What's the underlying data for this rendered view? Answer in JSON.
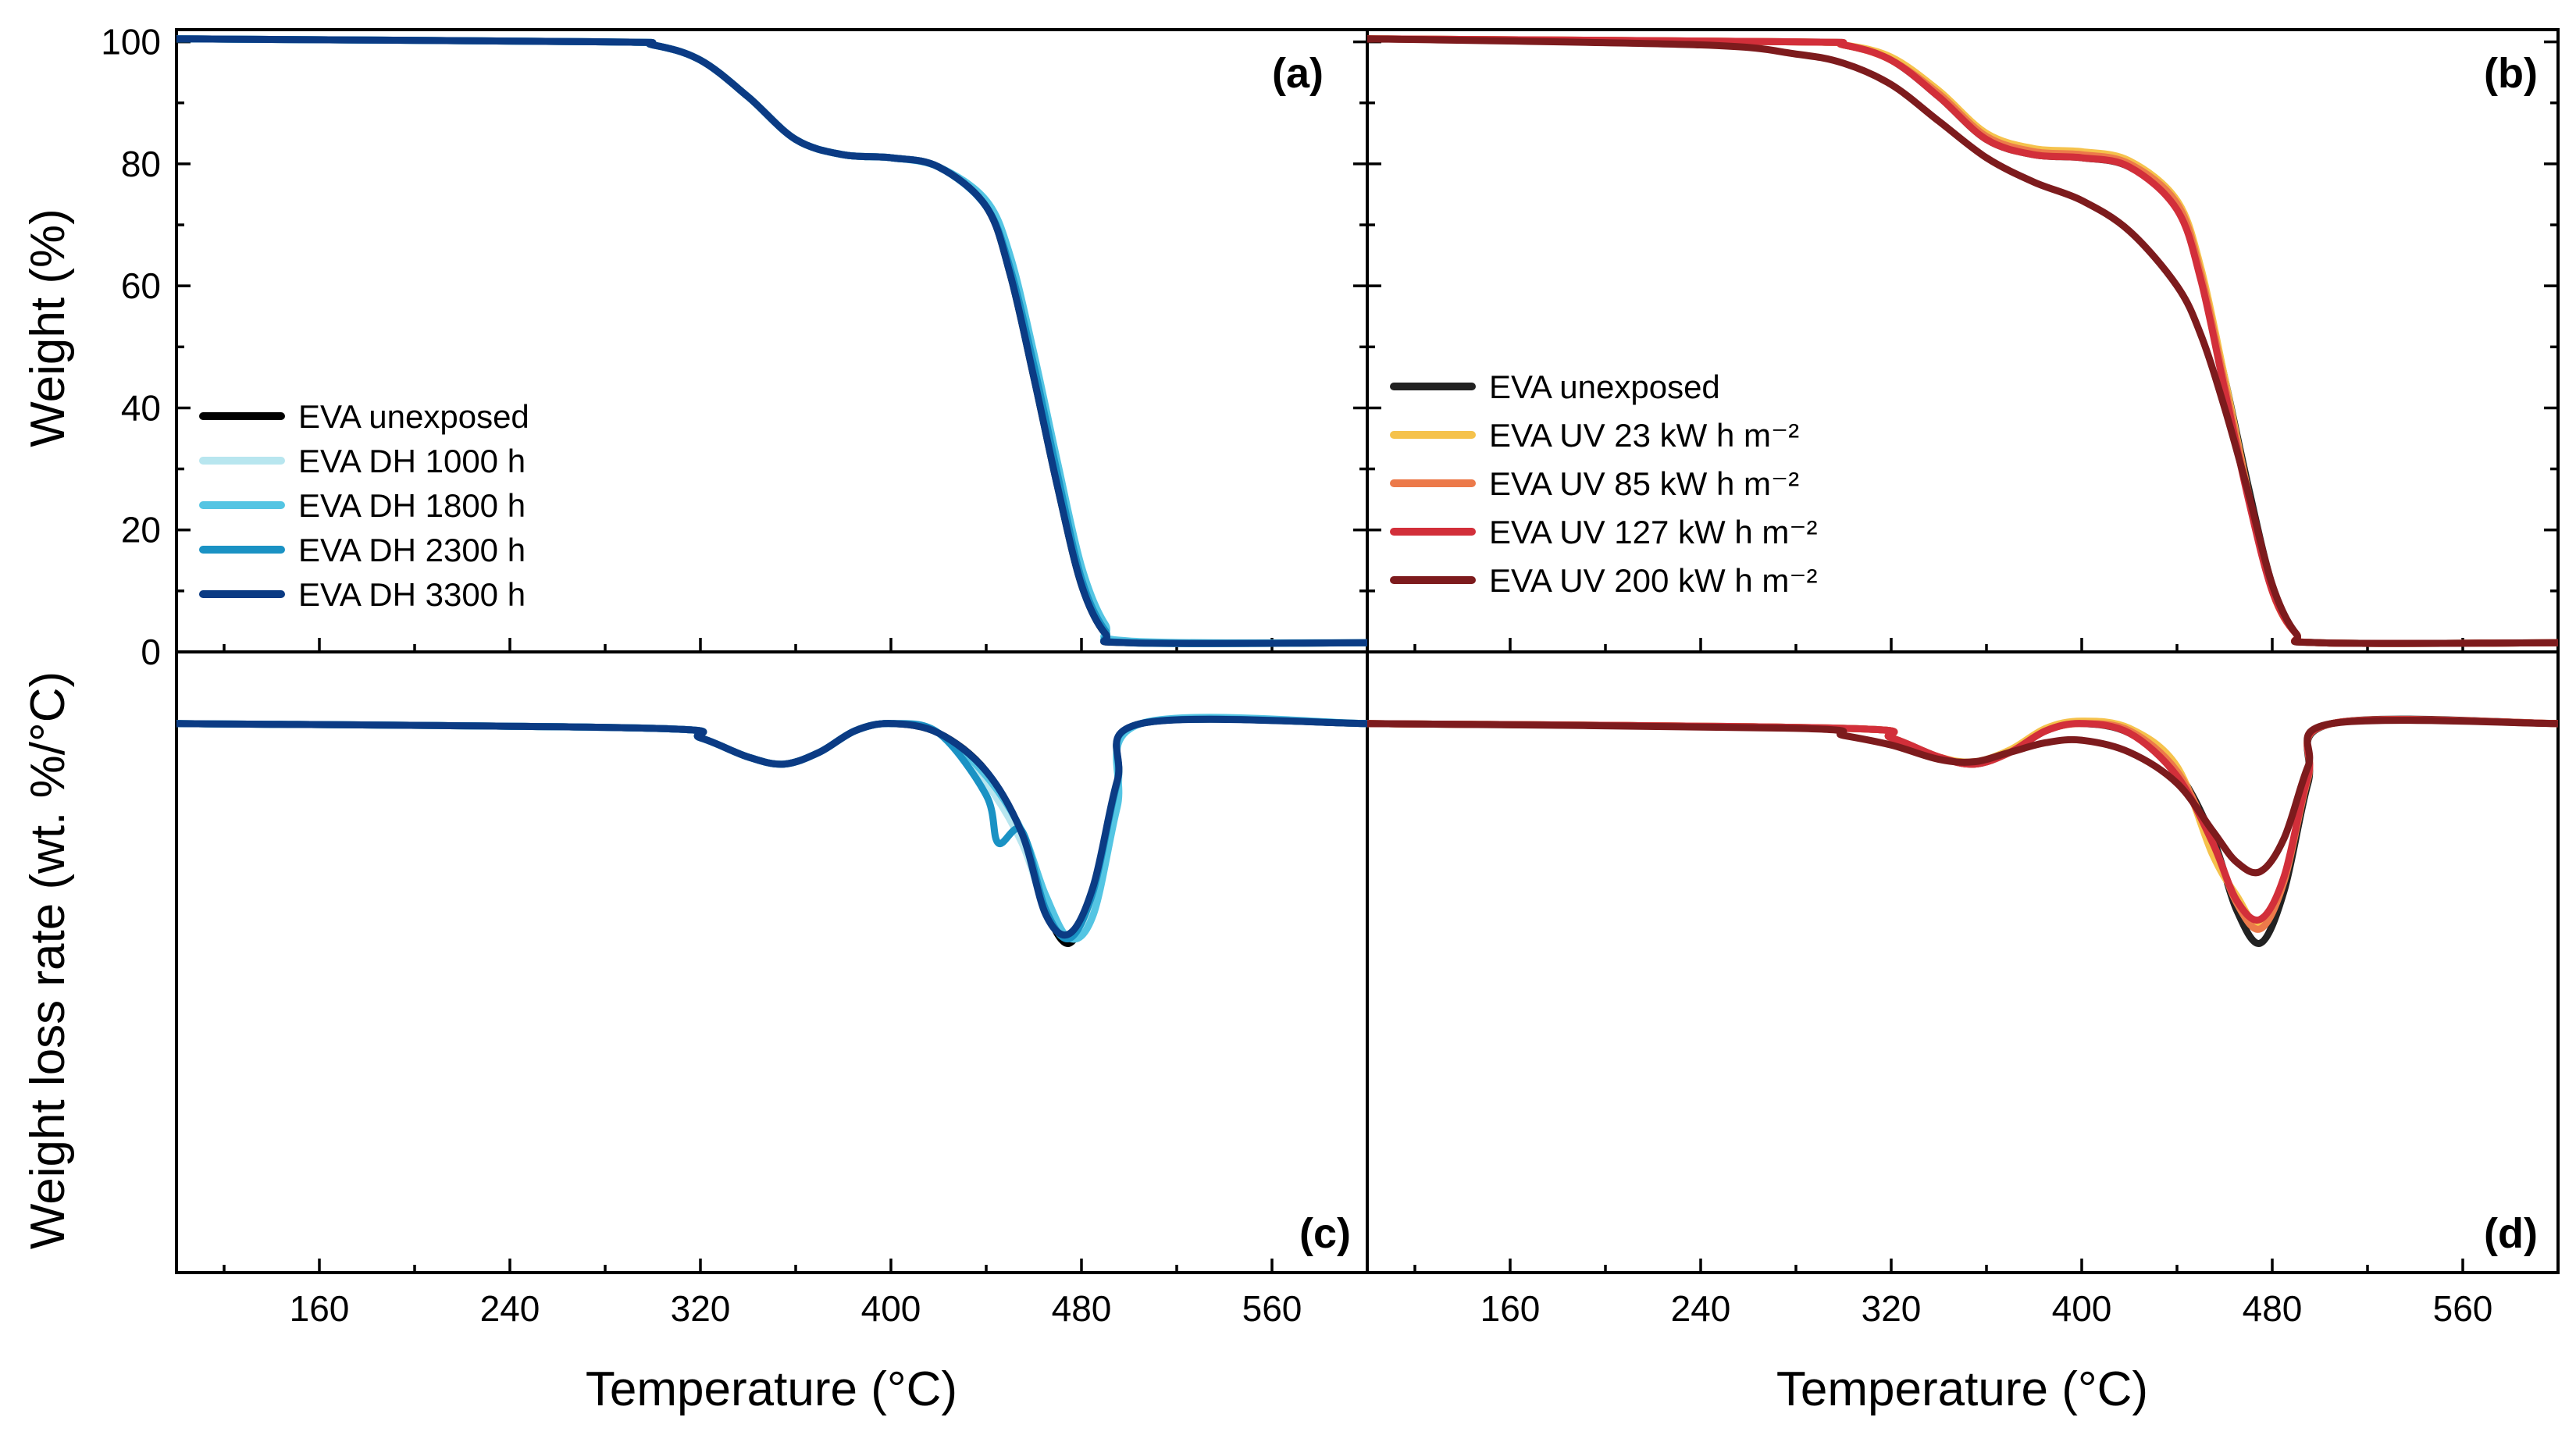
{
  "chart_data": [
    {
      "panel": "(a)",
      "type": "line",
      "xlabel": "Temperature (°C)",
      "ylabel": "Weight (%)",
      "xlim": [
        100,
        600
      ],
      "ylim": [
        0,
        102
      ],
      "x_ticks": [
        160,
        240,
        320,
        400,
        480,
        560
      ],
      "y_ticks": [
        0,
        20,
        40,
        60,
        80,
        100
      ],
      "legend_position": "center-left",
      "series": [
        {
          "name": "EVA unexposed",
          "color": "#000000",
          "x": [
            100,
            280,
            300,
            320,
            340,
            360,
            380,
            400,
            420,
            440,
            450,
            460,
            470,
            480,
            490,
            500,
            600
          ],
          "y": [
            100.5,
            100,
            99.5,
            97,
            91,
            84,
            81.5,
            81,
            79.5,
            73,
            62,
            45,
            27,
            11,
            3,
            1.5,
            1.5
          ]
        },
        {
          "name": "EVA DH 1000 h",
          "color": "#b8e6ef",
          "x": [
            100,
            280,
            300,
            320,
            340,
            360,
            380,
            400,
            420,
            440,
            450,
            460,
            470,
            480,
            490,
            500,
            600
          ],
          "y": [
            100.5,
            100,
            99.5,
            97,
            91,
            84,
            81.5,
            81,
            79.5,
            73,
            63,
            46,
            28,
            12,
            3.5,
            1.5,
            1.5
          ]
        },
        {
          "name": "EVA DH 1800 h",
          "color": "#54c5e3",
          "x": [
            100,
            280,
            300,
            320,
            340,
            360,
            380,
            400,
            420,
            440,
            450,
            460,
            470,
            480,
            490,
            500,
            600
          ],
          "y": [
            100.5,
            100,
            99.5,
            97,
            91,
            84,
            81.5,
            81,
            79.5,
            74,
            65,
            49,
            31,
            14,
            4.5,
            1.8,
            1.5
          ]
        },
        {
          "name": "EVA DH 2300 h",
          "color": "#1a92c4",
          "x": [
            100,
            280,
            300,
            320,
            340,
            360,
            380,
            400,
            420,
            440,
            450,
            460,
            470,
            480,
            490,
            500,
            600
          ],
          "y": [
            100.5,
            100,
            99.5,
            97,
            91,
            84,
            81.5,
            81,
            79.5,
            73,
            63,
            47,
            29,
            12,
            3.5,
            1.5,
            1.5
          ]
        },
        {
          "name": "EVA DH 3300 h",
          "color": "#0b3b84",
          "x": [
            100,
            280,
            300,
            320,
            340,
            360,
            380,
            400,
            420,
            440,
            450,
            460,
            470,
            480,
            490,
            500,
            600
          ],
          "y": [
            100.5,
            100,
            99.5,
            97,
            91,
            84,
            81.5,
            81,
            79.5,
            73,
            62,
            45,
            27,
            11,
            3,
            1.5,
            1.5
          ]
        }
      ]
    },
    {
      "panel": "(b)",
      "type": "line",
      "xlabel": "Temperature (°C)",
      "ylabel": "Weight (%)",
      "xlim": [
        100,
        600
      ],
      "ylim": [
        0,
        102
      ],
      "x_ticks": [
        160,
        240,
        320,
        400,
        480,
        560
      ],
      "y_ticks": [
        0,
        20,
        40,
        60,
        80,
        100
      ],
      "legend_position": "center-left",
      "series": [
        {
          "name": "EVA unexposed",
          "color": "#222222",
          "x": [
            100,
            280,
            300,
            320,
            340,
            360,
            380,
            400,
            420,
            440,
            450,
            460,
            470,
            480,
            490,
            500,
            600
          ],
          "y": [
            100.5,
            100,
            99.5,
            97,
            91,
            84,
            81.5,
            81,
            79.5,
            73,
            62,
            45,
            27,
            11,
            3,
            1.5,
            1.5
          ]
        },
        {
          "name": "EVA UV 23 kW h m⁻²",
          "color": "#f5c24c",
          "x": [
            100,
            280,
            300,
            320,
            340,
            360,
            380,
            400,
            420,
            440,
            450,
            460,
            470,
            480,
            490,
            500,
            600
          ],
          "y": [
            100.5,
            100,
            99.5,
            97.5,
            92,
            85,
            82.5,
            82,
            80.5,
            74,
            63,
            45,
            26,
            10,
            3,
            1.5,
            1.5
          ]
        },
        {
          "name": "EVA UV 85 kW h m⁻²",
          "color": "#ec7a4a",
          "x": [
            100,
            280,
            300,
            320,
            340,
            360,
            380,
            400,
            420,
            440,
            450,
            460,
            470,
            480,
            490,
            500,
            600
          ],
          "y": [
            100.5,
            100,
            99.5,
            97,
            91.5,
            84.5,
            82,
            81.5,
            80,
            73.5,
            62,
            44,
            26,
            10,
            3,
            1.5,
            1.5
          ]
        },
        {
          "name": "EVA UV 127 kW h m⁻²",
          "color": "#d22f3a",
          "x": [
            100,
            280,
            300,
            320,
            340,
            360,
            380,
            400,
            420,
            440,
            450,
            460,
            470,
            480,
            490,
            500,
            600
          ],
          "y": [
            100.5,
            100,
            99.5,
            97,
            91,
            84,
            81.5,
            81,
            79.5,
            72.5,
            61,
            43,
            25,
            10,
            3,
            1.5,
            1.5
          ]
        },
        {
          "name": "EVA UV 200 kW h m⁻²",
          "color": "#7d1b1d",
          "x": [
            100,
            240,
            280,
            300,
            320,
            340,
            360,
            380,
            400,
            420,
            440,
            450,
            460,
            470,
            480,
            490,
            500,
            600
          ],
          "y": [
            100.5,
            99.5,
            98,
            96.5,
            93,
            87,
            81,
            77,
            74,
            69,
            60,
            52,
            40,
            26,
            11,
            3,
            1.5,
            1.5
          ]
        }
      ]
    },
    {
      "panel": "(c)",
      "type": "line",
      "xlabel": "Temperature (°C)",
      "ylabel": "Weight loss rate (wt. %/°C)",
      "xlim": [
        100,
        600
      ],
      "ylim": [
        -2.3,
        0.3
      ],
      "x_ticks": [
        160,
        240,
        320,
        400,
        480,
        560
      ],
      "series": [
        {
          "name": "EVA unexposed",
          "color": "#000000",
          "x": [
            100,
            300,
            320,
            340,
            355,
            370,
            385,
            400,
            420,
            440,
            455,
            465,
            475,
            485,
            495,
            505,
            600
          ],
          "y": [
            0,
            -0.02,
            -0.06,
            -0.14,
            -0.17,
            -0.12,
            -0.03,
            0,
            -0.04,
            -0.2,
            -0.48,
            -0.78,
            -0.92,
            -0.7,
            -0.25,
            0,
            0
          ]
        },
        {
          "name": "EVA DH 1000 h",
          "color": "#b8e6ef",
          "x": [
            100,
            300,
            320,
            340,
            355,
            370,
            385,
            400,
            420,
            440,
            455,
            465,
            475,
            485,
            495,
            505,
            600
          ],
          "y": [
            0,
            -0.02,
            -0.06,
            -0.14,
            -0.17,
            -0.12,
            -0.03,
            0,
            -0.04,
            -0.25,
            -0.5,
            -0.78,
            -0.9,
            -0.72,
            -0.28,
            0,
            0
          ]
        },
        {
          "name": "EVA DH 1800 h",
          "color": "#54c5e3",
          "x": [
            100,
            300,
            320,
            340,
            355,
            370,
            385,
            400,
            420,
            440,
            455,
            465,
            475,
            485,
            495,
            505,
            600
          ],
          "y": [
            0,
            -0.02,
            -0.06,
            -0.14,
            -0.17,
            -0.12,
            -0.03,
            0,
            -0.04,
            -0.22,
            -0.45,
            -0.72,
            -0.9,
            -0.8,
            -0.35,
            0,
            0
          ]
        },
        {
          "name": "EVA DH 2300 h",
          "color": "#1a92c4",
          "x": [
            100,
            300,
            320,
            340,
            355,
            370,
            385,
            400,
            420,
            440,
            445,
            455,
            465,
            475,
            485,
            495,
            505,
            600
          ],
          "y": [
            0,
            -0.02,
            -0.06,
            -0.14,
            -0.17,
            -0.12,
            -0.03,
            0,
            -0.04,
            -0.3,
            -0.5,
            -0.45,
            -0.78,
            -0.9,
            -0.7,
            -0.25,
            0,
            0
          ]
        },
        {
          "name": "EVA DH 3300 h",
          "color": "#0b3b84",
          "x": [
            100,
            300,
            320,
            340,
            355,
            370,
            385,
            400,
            420,
            440,
            455,
            465,
            475,
            485,
            495,
            505,
            600
          ],
          "y": [
            0,
            -0.02,
            -0.06,
            -0.14,
            -0.17,
            -0.12,
            -0.03,
            0,
            -0.04,
            -0.2,
            -0.46,
            -0.8,
            -0.88,
            -0.68,
            -0.24,
            0,
            0
          ]
        }
      ]
    },
    {
      "panel": "(d)",
      "type": "line",
      "xlabel": "Temperature (°C)",
      "ylabel": "Weight loss rate (wt. %/°C)",
      "xlim": [
        100,
        600
      ],
      "ylim": [
        -2.3,
        0.3
      ],
      "x_ticks": [
        160,
        240,
        320,
        400,
        480,
        560
      ],
      "series": [
        {
          "name": "EVA unexposed",
          "color": "#222222",
          "x": [
            100,
            300,
            320,
            340,
            355,
            370,
            385,
            400,
            420,
            440,
            455,
            465,
            475,
            485,
            495,
            505,
            600
          ],
          "y": [
            0,
            -0.02,
            -0.06,
            -0.14,
            -0.17,
            -0.12,
            -0.03,
            0,
            -0.04,
            -0.2,
            -0.48,
            -0.78,
            -0.92,
            -0.7,
            -0.25,
            0,
            0
          ]
        },
        {
          "name": "EVA UV 23 kW h m⁻²",
          "color": "#f5c24c",
          "x": [
            100,
            300,
            320,
            340,
            355,
            370,
            385,
            400,
            420,
            440,
            455,
            465,
            475,
            485,
            495,
            505,
            600
          ],
          "y": [
            0,
            -0.02,
            -0.06,
            -0.14,
            -0.16,
            -0.11,
            -0.02,
            0.01,
            -0.02,
            -0.18,
            -0.55,
            -0.72,
            -0.85,
            -0.65,
            -0.22,
            0,
            0
          ]
        },
        {
          "name": "EVA UV 85 kW h m⁻²",
          "color": "#ec7a4a",
          "x": [
            100,
            300,
            320,
            340,
            355,
            370,
            385,
            400,
            420,
            440,
            455,
            465,
            475,
            485,
            495,
            505,
            600
          ],
          "y": [
            0,
            -0.02,
            -0.06,
            -0.14,
            -0.17,
            -0.12,
            -0.03,
            0,
            -0.03,
            -0.2,
            -0.5,
            -0.75,
            -0.86,
            -0.66,
            -0.23,
            0,
            0
          ]
        },
        {
          "name": "EVA UV 127 kW h m⁻²",
          "color": "#d22f3a",
          "x": [
            100,
            300,
            320,
            340,
            355,
            370,
            385,
            400,
            420,
            440,
            455,
            465,
            475,
            485,
            495,
            505,
            600
          ],
          "y": [
            0,
            -0.02,
            -0.06,
            -0.14,
            -0.17,
            -0.12,
            -0.03,
            0,
            -0.04,
            -0.22,
            -0.5,
            -0.74,
            -0.82,
            -0.64,
            -0.22,
            0,
            0
          ]
        },
        {
          "name": "EVA UV 200 kW h m⁻²",
          "color": "#7d1b1d",
          "x": [
            100,
            280,
            300,
            320,
            340,
            355,
            370,
            385,
            400,
            420,
            440,
            455,
            465,
            475,
            485,
            495,
            505,
            600
          ],
          "y": [
            0,
            -0.02,
            -0.05,
            -0.09,
            -0.15,
            -0.16,
            -0.12,
            -0.08,
            -0.07,
            -0.12,
            -0.25,
            -0.45,
            -0.58,
            -0.62,
            -0.48,
            -0.18,
            0,
            0
          ]
        }
      ]
    }
  ]
}
